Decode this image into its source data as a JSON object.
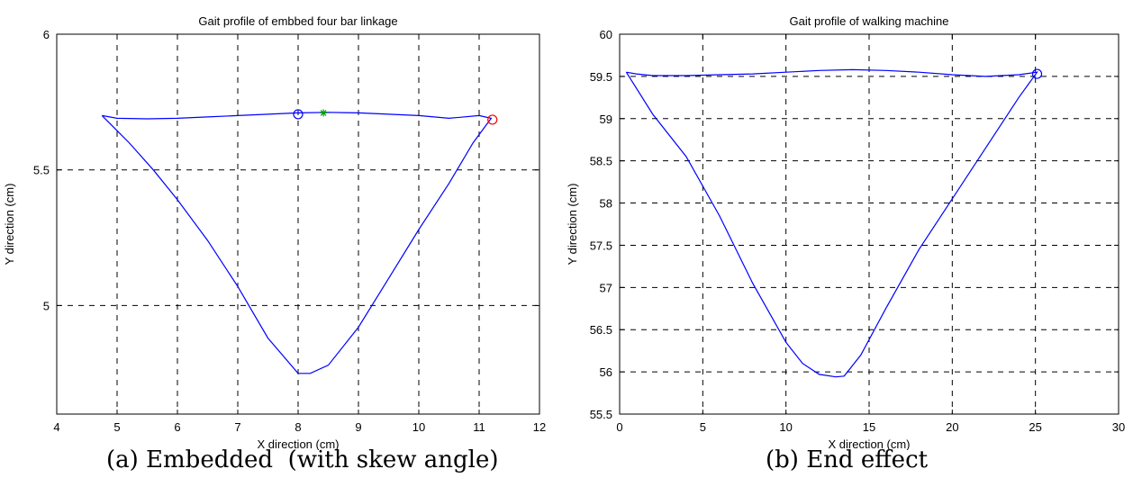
{
  "chart_data": [
    {
      "type": "line",
      "title": "Gait profile of embbed four bar linkage",
      "xlabel": "X direction (cm)",
      "ylabel": "Y direction (cm)",
      "xlim": [
        4,
        12
      ],
      "ylim": [
        4.6,
        6
      ],
      "xticks": [
        4,
        5,
        6,
        7,
        8,
        9,
        10,
        11,
        12
      ],
      "yticks": [
        5,
        5.5,
        6
      ],
      "grid": true,
      "series": [
        {
          "color": "#0000ff",
          "x": [
            4.75,
            5.2,
            5.6,
            6.0,
            6.5,
            7.0,
            7.5,
            8.0,
            8.2,
            8.5,
            9.0,
            9.5,
            10.0,
            10.5,
            10.9,
            11.2,
            11.0,
            10.5,
            10.0,
            9.5,
            9.0,
            8.5,
            8.0,
            7.5,
            7.0,
            6.5,
            6.0,
            5.5,
            5.0,
            4.75
          ],
          "y": [
            5.7,
            5.6,
            5.5,
            5.39,
            5.24,
            5.07,
            4.88,
            4.75,
            4.75,
            4.78,
            4.92,
            5.1,
            5.28,
            5.45,
            5.6,
            5.69,
            5.7,
            5.69,
            5.7,
            5.705,
            5.71,
            5.712,
            5.71,
            5.705,
            5.7,
            5.695,
            5.69,
            5.688,
            5.69,
            5.7
          ]
        }
      ],
      "markers": [
        {
          "kind": "circle",
          "color": "#0000ff",
          "x": 8.0,
          "y": 5.705
        },
        {
          "kind": "star",
          "color": "#00a000",
          "x": 8.42,
          "y": 5.71
        },
        {
          "kind": "circle",
          "color": "#ff0000",
          "x": 11.22,
          "y": 5.685
        }
      ],
      "caption": "(a) Embedded  (with skew angle)"
    },
    {
      "type": "line",
      "title": "Gait profile of walking machine",
      "xlabel": "X direction (cm)",
      "ylabel": "Y direction (cm)",
      "xlim": [
        0,
        30
      ],
      "ylim": [
        55.5,
        60
      ],
      "xticks": [
        0,
        5,
        10,
        15,
        20,
        25,
        30
      ],
      "yticks": [
        55.5,
        56,
        56.5,
        57,
        57.5,
        58,
        58.5,
        59,
        59.5,
        60
      ],
      "grid": true,
      "series": [
        {
          "color": "#0000ff",
          "x": [
            0.4,
            2.0,
            4.0,
            6.0,
            8.0,
            10.0,
            11.0,
            12.0,
            13.0,
            13.5,
            14.5,
            16.0,
            18.0,
            20.0,
            22.0,
            24.0,
            25.1,
            24.0,
            22.0,
            20.0,
            18.0,
            16.0,
            14.0,
            12.0,
            10.0,
            8.0,
            6.0,
            4.0,
            2.0,
            1.0,
            0.4
          ],
          "y": [
            59.55,
            59.05,
            58.55,
            57.85,
            57.05,
            56.35,
            56.1,
            55.97,
            55.94,
            55.95,
            56.2,
            56.75,
            57.45,
            58.05,
            58.65,
            59.25,
            59.55,
            59.52,
            59.5,
            59.52,
            59.55,
            59.57,
            59.58,
            59.57,
            59.55,
            59.53,
            59.52,
            59.51,
            59.51,
            59.53,
            59.55
          ]
        }
      ],
      "markers": [
        {
          "kind": "circle",
          "color": "#0000ff",
          "x": 25.1,
          "y": 59.53
        }
      ],
      "caption": "(b) End effect"
    }
  ]
}
